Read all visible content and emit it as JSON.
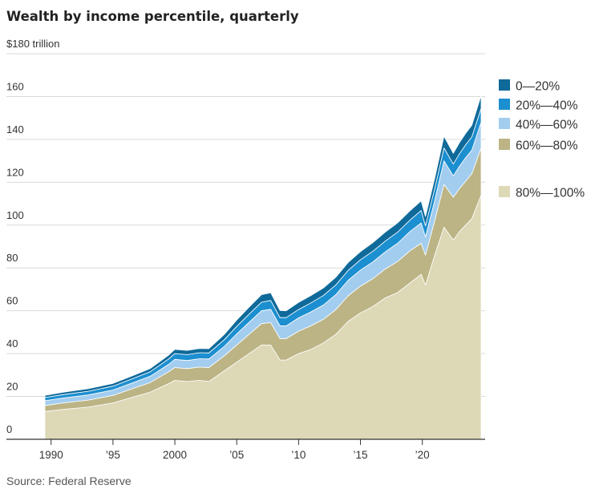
{
  "title": "Wealth by income percentile, quarterly",
  "source": "Source: Federal Reserve",
  "colors": {
    "p0_20": "#0f6a9a",
    "p20_40": "#1c8fd0",
    "p40_60": "#a3cdef",
    "p60_80": "#bcb485",
    "p80_100": "#ddd8b6"
  },
  "chart_data": {
    "type": "area",
    "stacked": true,
    "title": "Wealth by income percentile, quarterly",
    "ylabel_top": "$180 trillion",
    "ylim": [
      0,
      180
    ],
    "xlim": [
      1989.5,
      2024.75
    ],
    "yticks": [
      {
        "value": 0,
        "label": "0"
      },
      {
        "value": 20,
        "label": "20"
      },
      {
        "value": 40,
        "label": "40"
      },
      {
        "value": 60,
        "label": "60"
      },
      {
        "value": 80,
        "label": "80"
      },
      {
        "value": 100,
        "label": "100"
      },
      {
        "value": 120,
        "label": "120"
      },
      {
        "value": 140,
        "label": "140"
      },
      {
        "value": 160,
        "label": "160"
      },
      {
        "value": 180,
        "label": "$180 trillion"
      }
    ],
    "xticks": [
      {
        "value": 1990,
        "label": "1990"
      },
      {
        "value": 1995,
        "label": "’95"
      },
      {
        "value": 2000,
        "label": "2000"
      },
      {
        "value": 2005,
        "label": "’05"
      },
      {
        "value": 2010,
        "label": "’10"
      },
      {
        "value": 2015,
        "label": "’15"
      },
      {
        "value": 2020,
        "label": "’20"
      }
    ],
    "grid": true,
    "legend_placement": "right",
    "x": [
      1989.5,
      1991,
      1993,
      1995,
      1996.5,
      1998,
      1999.5,
      2000,
      2001,
      2002,
      2002.75,
      2004,
      2005,
      2006,
      2007,
      2007.75,
      2008.5,
      2009,
      2010,
      2011,
      2012,
      2013,
      2014,
      2015,
      2016,
      2017,
      2018,
      2019,
      2019.9,
      2020.25,
      2021,
      2021.75,
      2022.5,
      2023,
      2023.5,
      2024,
      2024.75
    ],
    "series": [
      {
        "name": "80%—100%",
        "color_key": "p80_100",
        "values": [
          13,
          14,
          15,
          17,
          19.5,
          22,
          26,
          27.5,
          27,
          27.5,
          27,
          32,
          36,
          40,
          44,
          44,
          37,
          37,
          40,
          42,
          45,
          49,
          55,
          59,
          62,
          66,
          68.5,
          73,
          77,
          72,
          86,
          99,
          93,
          97,
          100,
          103,
          114
        ]
      },
      {
        "name": "60%—80%",
        "color_key": "p60_80",
        "values": [
          2.8,
          3,
          3.3,
          3.5,
          4,
          4.5,
          5.5,
          6,
          6,
          6.2,
          6.5,
          7,
          8,
          9,
          10,
          10.5,
          10,
          10,
          10.5,
          11,
          11,
          11.5,
          12,
          12.5,
          13,
          13.5,
          14.5,
          15,
          14.5,
          14,
          16,
          20,
          20,
          20,
          20.5,
          21,
          22
        ]
      },
      {
        "name": "40%—60%",
        "color_key": "p40_60",
        "values": [
          2.2,
          2.3,
          2.4,
          2.5,
          2.7,
          2.9,
          3.5,
          3.8,
          3.8,
          3.9,
          4,
          4.4,
          5.2,
          5.6,
          6,
          6.2,
          6,
          6,
          6.2,
          6.5,
          6.7,
          7,
          7.2,
          7.5,
          7.8,
          8,
          8.5,
          9,
          9.5,
          8.5,
          9.5,
          11,
          10,
          10.5,
          11,
          11,
          12
        ]
      },
      {
        "name": "20%—40%",
        "color_key": "p20_40",
        "values": [
          1.5,
          1.6,
          1.7,
          1.8,
          1.9,
          2.1,
          2.5,
          2.7,
          2.7,
          2.8,
          2.8,
          3.1,
          3.5,
          3.8,
          4,
          4.1,
          3.8,
          3.8,
          3.9,
          4.2,
          4.4,
          4.5,
          4.6,
          4.8,
          5,
          5,
          5.2,
          5.3,
          5.8,
          5.2,
          5.5,
          6,
          5.5,
          5.8,
          6,
          6.2,
          6.5
        ]
      },
      {
        "name": "0—20%",
        "color_key": "p0_20",
        "values": [
          1,
          1.1,
          1.2,
          1.3,
          1.4,
          1.5,
          1.8,
          2,
          2,
          2,
          2,
          2.5,
          3,
          3.3,
          3.5,
          3.6,
          3.3,
          3.2,
          3.3,
          3.4,
          3.5,
          3.6,
          3.7,
          3.8,
          4,
          4.2,
          4.3,
          4.4,
          4.5,
          4.3,
          4.8,
          5.5,
          5,
          5.2,
          5.3,
          5.4,
          6
        ]
      }
    ],
    "legend": [
      {
        "label": "0—20%",
        "color_key": "p0_20"
      },
      {
        "label": "20%—40%",
        "color_key": "p20_40"
      },
      {
        "label": "40%—60%",
        "color_key": "p40_60"
      },
      {
        "label": "60%—80%",
        "color_key": "p60_80"
      },
      {
        "label": "80%—100%",
        "color_key": "p80_100"
      }
    ]
  }
}
